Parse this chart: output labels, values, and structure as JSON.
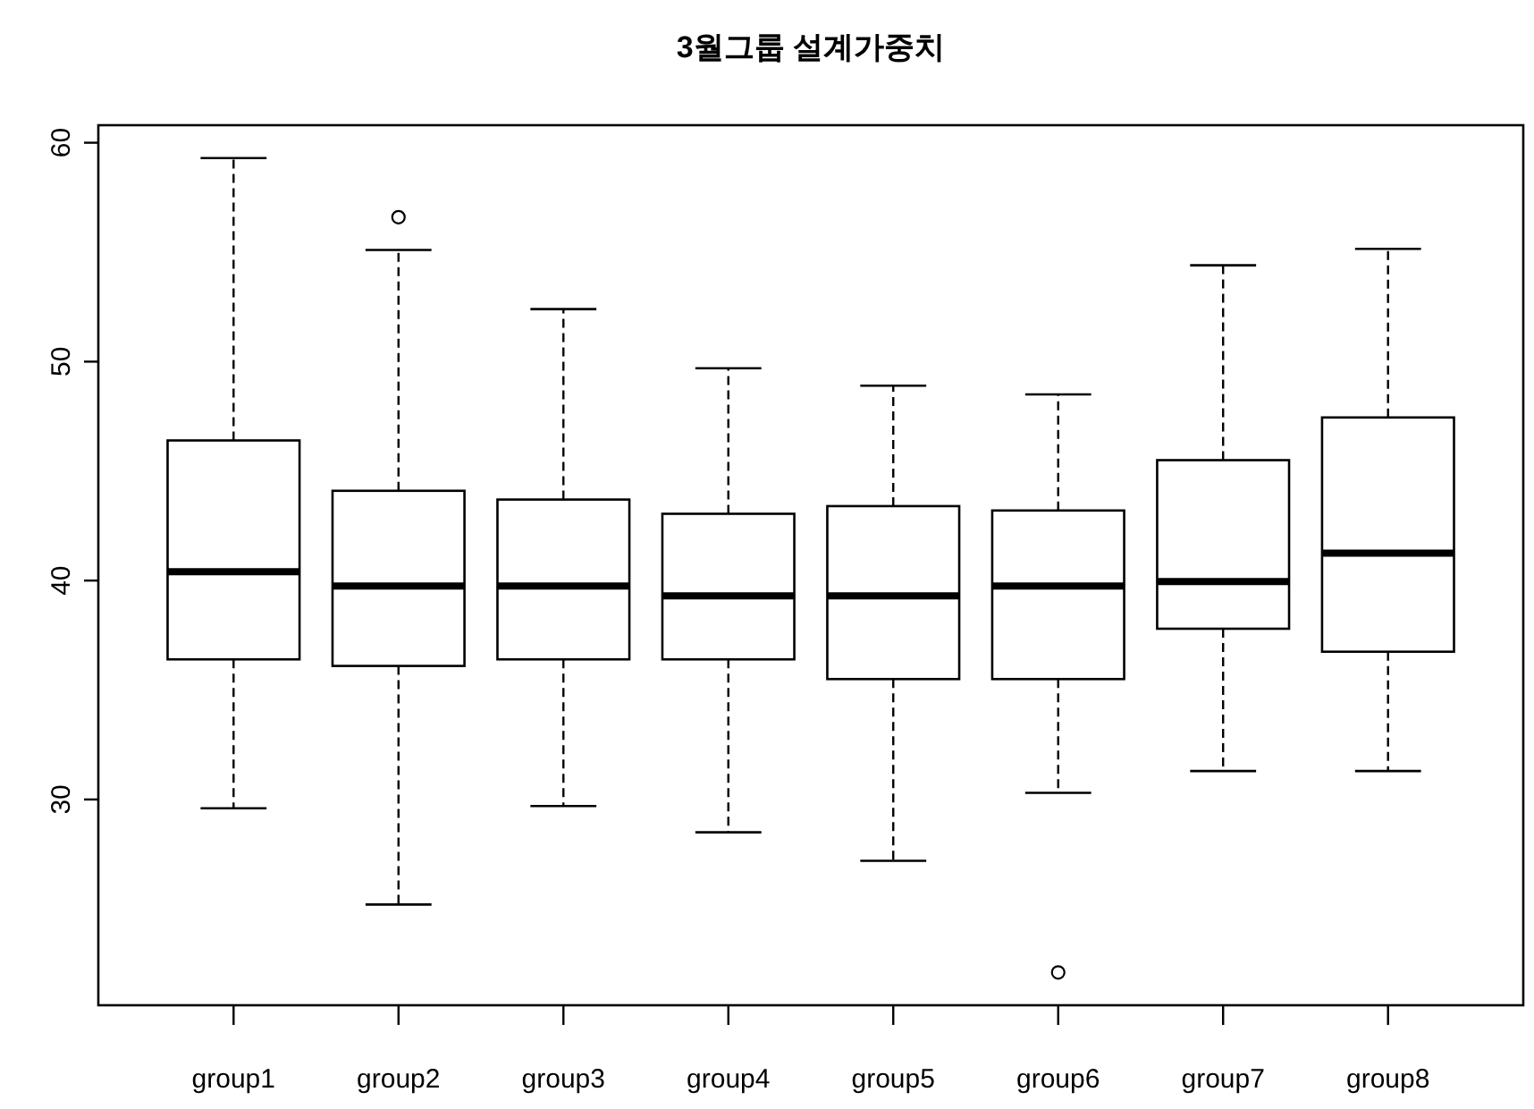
{
  "chart_data": {
    "type": "box",
    "title": "3월그룹 설계가중치",
    "categories": [
      "group1",
      "group2",
      "group3",
      "group4",
      "group5",
      "group6",
      "group7",
      "group8"
    ],
    "boxes": [
      {
        "low": 29.6,
        "q1": 36.4,
        "median": 40.4,
        "q3": 46.4,
        "high": 59.3
      },
      {
        "low": 25.2,
        "q1": 36.1,
        "median": 39.75,
        "q3": 44.1,
        "high": 55.1,
        "outliers": [
          56.6
        ]
      },
      {
        "low": 29.7,
        "q1": 36.4,
        "median": 39.75,
        "q3": 43.7,
        "high": 52.4
      },
      {
        "low": 28.5,
        "q1": 36.4,
        "median": 39.3,
        "q3": 43.05,
        "high": 49.7
      },
      {
        "low": 27.2,
        "q1": 35.5,
        "median": 39.3,
        "q3": 43.4,
        "high": 48.9
      },
      {
        "low": 30.3,
        "q1": 35.5,
        "median": 39.75,
        "q3": 43.2,
        "high": 48.5,
        "outliers": [
          22.1
        ]
      },
      {
        "low": 31.3,
        "q1": 37.8,
        "median": 39.95,
        "q3": 45.5,
        "high": 54.4
      },
      {
        "low": 31.3,
        "q1": 36.75,
        "median": 41.25,
        "q3": 47.45,
        "high": 55.15
      }
    ],
    "ylim": [
      20.6,
      60.8
    ],
    "yticks": [
      30,
      40,
      50,
      60
    ]
  }
}
